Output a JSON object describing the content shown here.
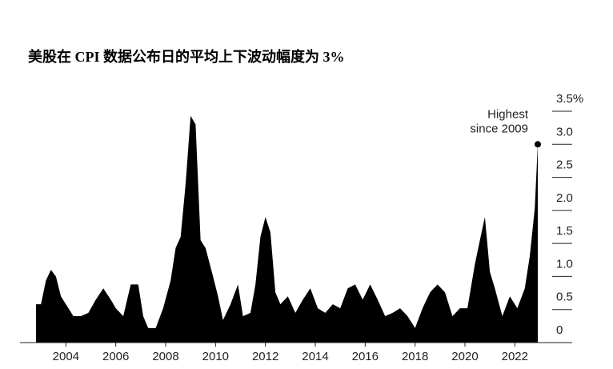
{
  "chart_data": {
    "type": "area",
    "title": "美股在 CPI 数据公布日的平均上下波动幅度为 3%",
    "annotation": [
      "Highest",
      "since 2009"
    ],
    "color": "#000000",
    "x": [
      2002.8,
      2003.0,
      2003.2,
      2003.4,
      2003.6,
      2003.8,
      2004.0,
      2004.3,
      2004.6,
      2004.9,
      2005.2,
      2005.5,
      2005.8,
      2006.0,
      2006.3,
      2006.6,
      2006.9,
      2007.1,
      2007.3,
      2007.6,
      2007.9,
      2008.2,
      2008.4,
      2008.6,
      2008.8,
      2009.0,
      2009.2,
      2009.4,
      2009.6,
      2009.9,
      2010.1,
      2010.3,
      2010.6,
      2010.9,
      2011.1,
      2011.4,
      2011.6,
      2011.8,
      2012.0,
      2012.2,
      2012.4,
      2012.6,
      2012.9,
      2013.2,
      2013.5,
      2013.8,
      2014.1,
      2014.4,
      2014.7,
      2015.0,
      2015.3,
      2015.6,
      2015.9,
      2016.2,
      2016.5,
      2016.8,
      2017.1,
      2017.4,
      2017.7,
      2018.0,
      2018.3,
      2018.6,
      2018.9,
      2019.2,
      2019.5,
      2019.8,
      2020.1,
      2020.4,
      2020.6,
      2020.8,
      2021.0,
      2021.2,
      2021.5,
      2021.8,
      2022.1,
      2022.4,
      2022.6,
      2022.8,
      2022.92
    ],
    "values": [
      0.58,
      0.58,
      0.94,
      1.1,
      1.0,
      0.7,
      0.58,
      0.4,
      0.4,
      0.45,
      0.65,
      0.82,
      0.65,
      0.52,
      0.4,
      0.88,
      0.88,
      0.4,
      0.22,
      0.22,
      0.52,
      0.94,
      1.43,
      1.6,
      2.4,
      3.43,
      3.3,
      1.55,
      1.43,
      1.0,
      0.7,
      0.34,
      0.58,
      0.88,
      0.4,
      0.45,
      0.88,
      1.6,
      1.9,
      1.67,
      0.76,
      0.58,
      0.7,
      0.45,
      0.65,
      0.82,
      0.52,
      0.45,
      0.58,
      0.52,
      0.82,
      0.88,
      0.65,
      0.88,
      0.65,
      0.4,
      0.45,
      0.52,
      0.4,
      0.22,
      0.52,
      0.76,
      0.88,
      0.76,
      0.4,
      0.52,
      0.52,
      1.19,
      1.55,
      1.9,
      1.07,
      0.82,
      0.4,
      0.7,
      0.52,
      0.82,
      1.31,
      2.03,
      3.0
    ],
    "xlim": [
      2002.16,
      2024.3
    ],
    "xticks": [
      2004,
      2006,
      2008,
      2010,
      2012,
      2014,
      2016,
      2018,
      2020,
      2022
    ],
    "ylim": [
      0,
      3.5
    ],
    "yticks": [
      0,
      0.5,
      {
        "value": 1,
        "label": "1.0"
      },
      1.5,
      {
        "value": 2,
        "label": "2.0"
      },
      2.5,
      {
        "value": 3,
        "label": "3.0"
      },
      {
        "value": 3.5,
        "label": "3.5%"
      }
    ]
  }
}
